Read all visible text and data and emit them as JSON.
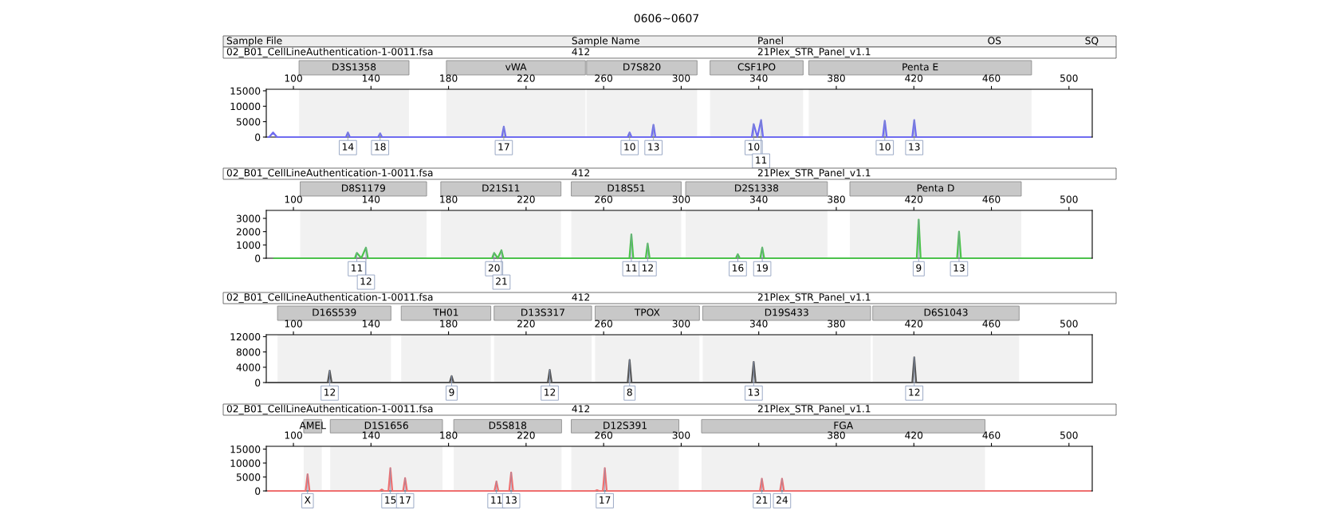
{
  "chart_data": [
    {
      "type": "line",
      "title": "0606~0607",
      "annotations": [
        "Sample File",
        "Sample Name",
        "Panel",
        "OS",
        "SQ",
        "02_B01_CellLineAuthentication-1-0011.fsa",
        "412",
        "21Plex_STR_Panel_v1.1",
        {
          "text": "14",
          "x": 128.1,
          "y": 1500
        },
        {
          "text": "18",
          "x": 144.7,
          "y": 1200
        },
        {
          "text": "17",
          "x": 208.5,
          "y": 3400
        },
        {
          "text": "10",
          "x": 273.4,
          "y": 1500
        },
        {
          "text": "13",
          "x": 285.7,
          "y": 4000
        },
        {
          "text": "10",
          "x": 337.4,
          "y": 4200
        },
        {
          "text": "11",
          "x": 341.2,
          "y": 5500
        },
        {
          "text": "10",
          "x": 405,
          "y": 5300
        },
        {
          "text": "13",
          "x": 420.2,
          "y": 5500
        }
      ],
      "series": [
        {
          "color": "#6f6cf0",
          "x": [
            87,
            87.5,
            89.5,
            91.5,
            127.1,
            128.1,
            129.1,
            143.7,
            144.7,
            145.7,
            207.5,
            208.5,
            209.5,
            272.4,
            273.4,
            274.4,
            284.7,
            285.7,
            286.7,
            336.4,
            337.4,
            339.3,
            341.2,
            342.2,
            404,
            405,
            406,
            419.2,
            420.2,
            421.2,
            511
          ],
          "values": [
            0,
            0,
            1500,
            0,
            0,
            1500,
            0,
            0,
            1200,
            0,
            0,
            3400,
            0,
            0,
            1500,
            0,
            0,
            4000,
            0,
            0,
            4200,
            0,
            5500,
            0,
            0,
            5300,
            0,
            0,
            5500,
            0,
            0
          ]
        }
      ],
      "xlim": [
        86,
        512
      ],
      "xticks": [
        100,
        140,
        180,
        220,
        260,
        300,
        340,
        380,
        420,
        460,
        500
      ],
      "ylim": [
        0,
        15500
      ],
      "yticks": [
        0,
        5000,
        10000,
        15000
      ],
      "bands": [
        {
          "axis": "x",
          "from": 102.9,
          "to": 159.6,
          "label": "D3S1358",
          "color": "#c8c8c8"
        },
        {
          "axis": "x",
          "from": 178.9,
          "to": 250.6,
          "label": "vWA",
          "color": "#c8c8c8"
        },
        {
          "axis": "x",
          "from": 251.2,
          "to": 308.2,
          "label": "D7S820",
          "color": "#c8c8c8"
        },
        {
          "axis": "x",
          "from": 314.9,
          "to": 362.9,
          "label": "CSF1PO",
          "color": "#c8c8c8"
        },
        {
          "axis": "x",
          "from": 365.8,
          "to": 480.7,
          "label": "Penta E",
          "color": "#c8c8c8"
        }
      ],
      "grid": false,
      "legend": false
    },
    {
      "type": "line",
      "annotations": [
        "02_B01_CellLineAuthentication-1-0011.fsa",
        "412",
        "21Plex_STR_Panel_v1.1",
        {
          "text": "11",
          "x": 132.7,
          "y": 400
        },
        {
          "text": "12",
          "x": 137.4,
          "y": 800
        },
        {
          "text": "20",
          "x": 203.5,
          "y": 400
        },
        {
          "text": "21",
          "x": 207.3,
          "y": 600
        },
        {
          "text": "11",
          "x": 274.3,
          "y": 1800
        },
        {
          "text": "12",
          "x": 282.7,
          "y": 1100
        },
        {
          "text": "16",
          "x": 329.2,
          "y": 300
        },
        {
          "text": "19",
          "x": 341.8,
          "y": 800
        },
        {
          "text": "9",
          "x": 422.5,
          "y": 2900
        },
        {
          "text": "13",
          "x": 443.3,
          "y": 2000
        }
      ],
      "series": [
        {
          "color": "#4cc24c",
          "x": [
            90,
            131.7,
            132.7,
            135,
            137.4,
            138.4,
            202.5,
            203.5,
            205.4,
            207.3,
            208.3,
            273.3,
            274.3,
            275.3,
            281.7,
            282.7,
            283.7,
            328.2,
            329.2,
            330.2,
            340.8,
            341.8,
            342.8,
            421.5,
            422.5,
            423.5,
            442.3,
            443.3,
            444.3,
            511
          ],
          "values": [
            0,
            0,
            400,
            0,
            800,
            0,
            0,
            400,
            0,
            600,
            0,
            0,
            1800,
            0,
            0,
            1100,
            0,
            0,
            300,
            0,
            0,
            800,
            0,
            0,
            2900,
            0,
            0,
            2000,
            0,
            0
          ]
        }
      ],
      "xlim": [
        86,
        512
      ],
      "xticks": [
        100,
        140,
        180,
        220,
        260,
        300,
        340,
        380,
        420,
        460,
        500
      ],
      "ylim": [
        0,
        3600
      ],
      "yticks": [
        0,
        1000,
        2000,
        3000
      ],
      "bands": [
        {
          "axis": "x",
          "from": 103.5,
          "to": 168.7,
          "label": "D8S1179",
          "color": "#c8c8c8"
        },
        {
          "axis": "x",
          "from": 176,
          "to": 238,
          "label": "D21S11",
          "color": "#c8c8c8"
        },
        {
          "axis": "x",
          "from": 243.3,
          "to": 300,
          "label": "D18S51",
          "color": "#c8c8c8"
        },
        {
          "axis": "x",
          "from": 302.3,
          "to": 375.4,
          "label": "D2S1338",
          "color": "#c8c8c8"
        },
        {
          "axis": "x",
          "from": 387,
          "to": 475.4,
          "label": "Penta D",
          "color": "#c8c8c8"
        }
      ],
      "grid": false,
      "legend": false
    },
    {
      "type": "line",
      "annotations": [
        "02_B01_CellLineAuthentication-1-0011.fsa",
        "412",
        "21Plex_STR_Panel_v1.1",
        {
          "text": "12",
          "x": 118.7,
          "y": 3100
        },
        {
          "text": "9",
          "x": 181.6,
          "y": 1700
        },
        {
          "text": "12",
          "x": 232.2,
          "y": 3300
        },
        {
          "text": "8",
          "x": 273.4,
          "y": 5900
        },
        {
          "text": "13",
          "x": 337.4,
          "y": 5400
        },
        {
          "text": "12",
          "x": 420.2,
          "y": 6600
        }
      ],
      "series": [
        {
          "color": "#555555",
          "x": [
            87,
            117.7,
            118.7,
            119.7,
            180.6,
            181.6,
            182.6,
            231.2,
            232.2,
            233.2,
            272.4,
            273.4,
            274.4,
            336.4,
            337.4,
            338.4,
            419.2,
            420.2,
            421.2,
            511
          ],
          "values": [
            0,
            0,
            3100,
            0,
            0,
            1700,
            0,
            0,
            3300,
            0,
            0,
            5900,
            0,
            0,
            5400,
            0,
            0,
            6600,
            0,
            0
          ]
        }
      ],
      "xlim": [
        86,
        512
      ],
      "xticks": [
        100,
        140,
        180,
        220,
        260,
        300,
        340,
        380,
        420,
        460,
        500
      ],
      "ylim": [
        0,
        12500
      ],
      "yticks": [
        0,
        4000,
        8000,
        12000
      ],
      "bands": [
        {
          "axis": "x",
          "from": 91.8,
          "to": 150.3,
          "label": "D16S539",
          "color": "#c8c8c8"
        },
        {
          "axis": "x",
          "from": 155.6,
          "to": 201.8,
          "label": "TH01",
          "color": "#c8c8c8"
        },
        {
          "axis": "x",
          "from": 203.5,
          "to": 253.8,
          "label": "D13S317",
          "color": "#c8c8c8"
        },
        {
          "axis": "x",
          "from": 255.6,
          "to": 309.4,
          "label": "TPOX",
          "color": "#c8c8c8"
        },
        {
          "axis": "x",
          "from": 311.1,
          "to": 397.7,
          "label": "D19S433",
          "color": "#c8c8c8"
        },
        {
          "axis": "x",
          "from": 398.8,
          "to": 474.3,
          "label": "D6S1043",
          "color": "#c8c8c8"
        }
      ],
      "grid": false,
      "legend": false
    },
    {
      "type": "line",
      "annotations": [
        "02_B01_CellLineAuthentication-1-0011.fsa",
        "412",
        "21Plex_STR_Panel_v1.1",
        {
          "text": "X",
          "x": 107.3,
          "y": 6000
        },
        {
          "text": "15",
          "x": 150,
          "y": 8200
        },
        {
          "text": "17",
          "x": 157.6,
          "y": 4600
        },
        {
          "text": "11",
          "x": 204.7,
          "y": 3400
        },
        {
          "text": "13",
          "x": 212.3,
          "y": 6600
        },
        {
          "text": "17",
          "x": 260.6,
          "y": 8200
        },
        {
          "text": "21",
          "x": 341.6,
          "y": 4400
        },
        {
          "text": "24",
          "x": 352,
          "y": 4400
        }
      ],
      "series": [
        {
          "color": "#ef6f6f",
          "x": [
            87,
            106.3,
            107.3,
            108.3,
            144.6,
            145.6,
            146.6,
            149,
            150,
            151,
            156.6,
            157.6,
            158.6,
            203.7,
            204.7,
            205.7,
            211.3,
            212.3,
            213.3,
            255.6,
            256.6,
            257.6,
            259.6,
            260.6,
            261.6,
            340.6,
            341.6,
            342.6,
            351,
            352,
            353,
            511
          ],
          "values": [
            0,
            0,
            6000,
            0,
            0,
            500,
            0,
            0,
            8200,
            0,
            0,
            4600,
            0,
            0,
            3400,
            0,
            0,
            6600,
            0,
            0,
            300,
            0,
            0,
            8200,
            0,
            0,
            4400,
            0,
            0,
            4400,
            0,
            0
          ]
        }
      ],
      "xlim": [
        86,
        512
      ],
      "xticks": [
        100,
        140,
        180,
        220,
        260,
        300,
        {
          "value": 340,
          "label": null
        },
        380,
        420,
        460,
        500
      ],
      "ylim": [
        0,
        16000
      ],
      "yticks": [
        0,
        5000,
        10000,
        15000
      ],
      "bands": [
        {
          "axis": "x",
          "from": 105.3,
          "to": 114.6,
          "label": "AMEL",
          "color": "#c8c8c8"
        },
        {
          "axis": "x",
          "from": 119,
          "to": 176.9,
          "label": "D1S1656",
          "color": "#c8c8c8"
        },
        {
          "axis": "x",
          "from": 182.7,
          "to": 238.3,
          "label": "D5S818",
          "color": "#c8c8c8"
        },
        {
          "axis": "x",
          "from": 243.3,
          "to": 298.8,
          "label": "D12S391",
          "color": "#c8c8c8"
        },
        {
          "axis": "x",
          "from": 310.5,
          "to": 456.7,
          "label": "FGA",
          "color": "#c8c8c8"
        }
      ],
      "grid": false,
      "legend": false
    }
  ]
}
